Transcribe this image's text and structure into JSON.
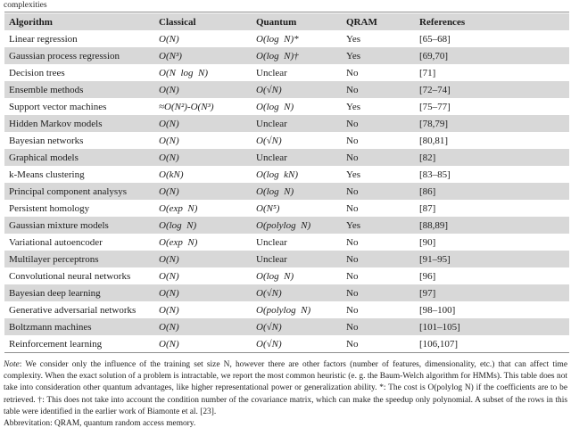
{
  "caption": "complexities",
  "colors": {
    "stripe": "#d8d8d8",
    "rule": "#8f8f8f",
    "text": "#1c1c1c"
  },
  "table": {
    "headers": [
      "Algorithm",
      "Classical",
      "Quantum",
      "QRAM",
      "References"
    ],
    "rows": [
      {
        "algorithm": "Linear regression",
        "classical": "O(N)",
        "quantum": "O(log N)*",
        "qram": "Yes",
        "references": "[65–68]"
      },
      {
        "algorithm": "Gaussian process regression",
        "classical": "O(N³)",
        "quantum": "O(log N)†",
        "qram": "Yes",
        "references": "[69,70]"
      },
      {
        "algorithm": "Decision trees",
        "classical": "O(N log N)",
        "quantum": "Unclear",
        "qram": "No",
        "references": "[71]"
      },
      {
        "algorithm": "Ensemble methods",
        "classical": "O(N)",
        "quantum": "O(√N)",
        "qram": "No",
        "references": "[72–74]"
      },
      {
        "algorithm": "Support vector machines",
        "classical": "≈O(N²)-O(N³)",
        "quantum": "O(log N)",
        "qram": "Yes",
        "references": "[75–77]"
      },
      {
        "algorithm": "Hidden Markov models",
        "classical": "O(N)",
        "quantum": "Unclear",
        "qram": "No",
        "references": "[78,79]"
      },
      {
        "algorithm": "Bayesian networks",
        "classical": "O(N)",
        "quantum": "O(√N)",
        "qram": "No",
        "references": "[80,81]"
      },
      {
        "algorithm": "Graphical models",
        "classical": "O(N)",
        "quantum": "Unclear",
        "qram": "No",
        "references": "[82]"
      },
      {
        "algorithm": "k-Means clustering",
        "classical": "O(kN)",
        "quantum": "O(log kN)",
        "qram": "Yes",
        "references": "[83–85]"
      },
      {
        "algorithm": "Principal component analysys",
        "classical": "O(N)",
        "quantum": "O(log N)",
        "qram": "No",
        "references": "[86]"
      },
      {
        "algorithm": "Persistent homology",
        "classical": "O(exp N)",
        "quantum": "O(N⁵)",
        "qram": "No",
        "references": "[87]"
      },
      {
        "algorithm": "Gaussian mixture models",
        "classical": "O(log N)",
        "quantum": "O(polylog N)",
        "qram": "Yes",
        "references": "[88,89]"
      },
      {
        "algorithm": "Variational autoencoder",
        "classical": "O(exp N)",
        "quantum": "Unclear",
        "qram": "No",
        "references": "[90]"
      },
      {
        "algorithm": "Multilayer perceptrons",
        "classical": "O(N)",
        "quantum": "Unclear",
        "qram": "No",
        "references": "[91–95]"
      },
      {
        "algorithm": "Convolutional neural networks",
        "classical": "O(N)",
        "quantum": "O(log N)",
        "qram": "No",
        "references": "[96]"
      },
      {
        "algorithm": "Bayesian deep learning",
        "classical": "O(N)",
        "quantum": "O(√N)",
        "qram": "No",
        "references": "[97]"
      },
      {
        "algorithm": "Generative adversarial networks",
        "classical": "O(N)",
        "quantum": "O(polylog N)",
        "qram": "No",
        "references": "[98–100]"
      },
      {
        "algorithm": "Boltzmann machines",
        "classical": "O(N)",
        "quantum": "O(√N)",
        "qram": "No",
        "references": "[101–105]"
      },
      {
        "algorithm": "Reinforcement learning",
        "classical": "O(N)",
        "quantum": "O(√N)",
        "qram": "No",
        "references": "[106,107]"
      }
    ]
  },
  "note": {
    "label": "Note",
    "text": ": We consider only the influence of the training set size N, however there are other factors (number of features, dimensionality, etc.) that can affect time complexity. When the exact solution of a problem is intractable, we report the most common heuristic (e. g. the Baum-Welch algorithm for HMMs). This table does not take into consideration other quantum advantages, like higher representational power or generalization ability. *: The cost is O(polylog N) if the coefficients are to be retrieved. †: This does not take into account the condition number of the covariance matrix, which can make the speedup only polynomial. A subset of the rows in this table were identified in the earlier work of Biamonte et al. [23].",
    "abbreviation": "Abbrevitation: QRAM, quantum random access memory."
  }
}
